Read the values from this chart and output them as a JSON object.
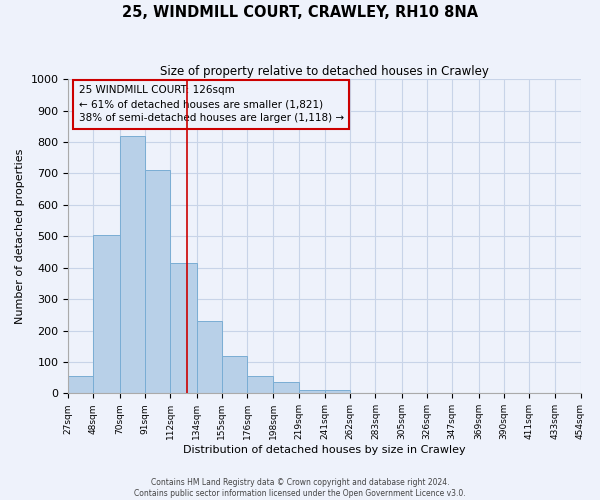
{
  "title": "25, WINDMILL COURT, CRAWLEY, RH10 8NA",
  "subtitle": "Size of property relative to detached houses in Crawley",
  "xlabel": "Distribution of detached houses by size in Crawley",
  "ylabel": "Number of detached properties",
  "bin_edges": [
    27,
    48,
    70,
    91,
    112,
    134,
    155,
    176,
    198,
    219,
    241,
    262,
    283,
    305,
    326,
    347,
    369,
    390,
    411,
    433,
    454
  ],
  "bin_heights": [
    55,
    505,
    820,
    710,
    415,
    230,
    118,
    55,
    35,
    12,
    12,
    0,
    0,
    0,
    0,
    0,
    0,
    0,
    0,
    0
  ],
  "tick_labels": [
    "27sqm",
    "48sqm",
    "70sqm",
    "91sqm",
    "112sqm",
    "134sqm",
    "155sqm",
    "176sqm",
    "198sqm",
    "219sqm",
    "241sqm",
    "262sqm",
    "283sqm",
    "305sqm",
    "326sqm",
    "347sqm",
    "369sqm",
    "390sqm",
    "411sqm",
    "433sqm",
    "454sqm"
  ],
  "bar_color": "#b8d0e8",
  "bar_edge_color": "#7aadd4",
  "property_line_x": 126,
  "property_line_color": "#cc0000",
  "annotation_line1": "25 WINDMILL COURT: 126sqm",
  "annotation_line2": "← 61% of detached houses are smaller (1,821)",
  "annotation_line3": "38% of semi-detached houses are larger (1,118) →",
  "annotation_box_color": "#cc0000",
  "ylim": [
    0,
    1000
  ],
  "yticks": [
    0,
    100,
    200,
    300,
    400,
    500,
    600,
    700,
    800,
    900,
    1000
  ],
  "grid_color": "#c8d4e8",
  "background_color": "#eef2fb",
  "footer_line1": "Contains HM Land Registry data © Crown copyright and database right 2024.",
  "footer_line2": "Contains public sector information licensed under the Open Government Licence v3.0."
}
